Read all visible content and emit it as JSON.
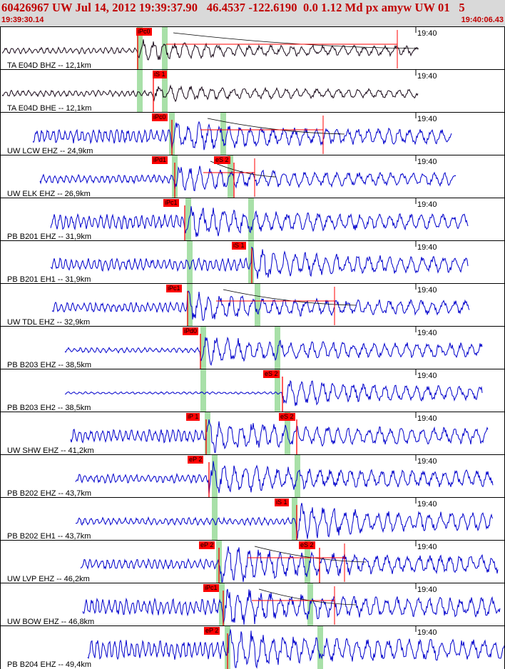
{
  "header": {
    "title": "60426967 UW Jul 14, 2012 19:39:37.90   46.4537 -122.6190  0.0 1.12 Md px amyw UW 01   5",
    "start_time": "19:39:30.14",
    "end_time": "19:40:06.43"
  },
  "colors": {
    "header_bg": "#d9d9d9",
    "header_text": "#c00000",
    "trace_blue": "#0000cc",
    "trace_black": "#1a0a1a",
    "pick_red": "#ff0000",
    "pick_window_green": "#a8e0a8"
  },
  "panels": [
    {
      "station": "TA E04D BHZ -- 12,1km",
      "time_tick": "19:40",
      "trace_color": "black",
      "picks": [
        "iPc0"
      ]
    },
    {
      "station": "TA E04D BHE -- 12,1km",
      "time_tick": "19:40",
      "trace_color": "black",
      "picks": [
        "iS 1"
      ]
    },
    {
      "station": "UW LCW EHZ -- 24,9km",
      "time_tick": "19:40",
      "trace_color": "blue",
      "picks": [
        "iPc0"
      ]
    },
    {
      "station": "UW ELK EHZ -- 26,9km",
      "time_tick": "19:40",
      "trace_color": "blue",
      "picks": [
        "iPd1",
        "eS 2"
      ]
    },
    {
      "station": "PB B201 EHZ -- 31,9km",
      "time_tick": "19:40",
      "trace_color": "blue",
      "picks": [
        "iPc1"
      ]
    },
    {
      "station": "PB B201 EH1 -- 31,9km",
      "time_tick": "19:40",
      "trace_color": "blue",
      "picks": [
        "iS 1"
      ]
    },
    {
      "station": "UW TDL EHZ -- 32,9km",
      "time_tick": "19:40",
      "trace_color": "blue",
      "picks": [
        "iPc1"
      ]
    },
    {
      "station": "PB B203 EHZ -- 38,5km",
      "time_tick": "19:40",
      "trace_color": "blue",
      "picks": [
        "iPd0"
      ]
    },
    {
      "station": "PB B203 EH2 -- 38,5km",
      "time_tick": "19:40",
      "trace_color": "blue",
      "picks": [
        "eS 2"
      ]
    },
    {
      "station": "UW SHW EHZ -- 41,2km",
      "time_tick": "19:40",
      "trace_color": "blue",
      "picks": [
        "iP 1",
        "eS 2"
      ]
    },
    {
      "station": "PB B202 EHZ -- 43,7km",
      "time_tick": "19:40",
      "trace_color": "blue",
      "picks": [
        "eP 2"
      ]
    },
    {
      "station": "PB B202 EH1 -- 43,7km",
      "time_tick": "19:40",
      "trace_color": "blue",
      "picks": [
        "iS 1"
      ]
    },
    {
      "station": "UW LVP EHZ -- 46,2km",
      "time_tick": "19:40",
      "trace_color": "blue",
      "picks": [
        "eP 2",
        "eS 2"
      ]
    },
    {
      "station": "UW BOW EHZ -- 46,8km",
      "time_tick": "19:40",
      "trace_color": "blue",
      "picks": [
        "iPc1"
      ]
    },
    {
      "station": "PB B204 EHZ -- 49,4km",
      "time_tick": "19:40",
      "trace_color": "blue",
      "picks": [
        "eP 2"
      ]
    }
  ]
}
